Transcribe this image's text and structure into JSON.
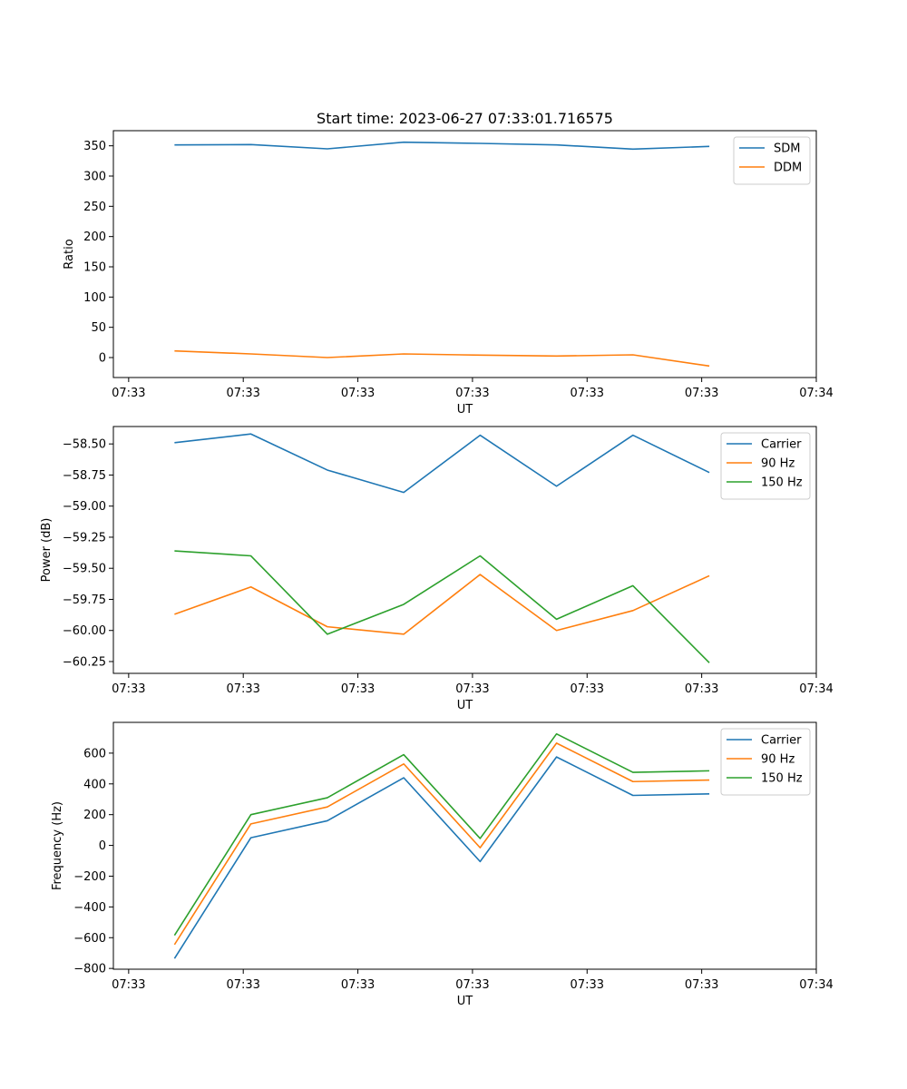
{
  "figure": {
    "title": "Start time: 2023-06-27 07:33:01.716575"
  },
  "chart_data": [
    {
      "type": "line",
      "title": "Start time: 2023-06-27 07:33:01.716575",
      "xlabel": "UT",
      "ylabel": "Ratio",
      "x_tick_labels": [
        "07:33",
        "07:33",
        "07:33",
        "07:33",
        "07:33",
        "07:33",
        "07:34"
      ],
      "y_ticks": [
        0,
        50,
        100,
        150,
        200,
        250,
        300,
        350
      ],
      "ylim": [
        -33,
        375
      ],
      "x": [
        1,
        2,
        3,
        4,
        5,
        6,
        7,
        8
      ],
      "xlim": [
        0.2,
        9.4
      ],
      "x_ticks": [
        0.4,
        1.9,
        3.4,
        4.9,
        6.4,
        7.9,
        9.4
      ],
      "legend": "top-right",
      "grid": false,
      "series": [
        {
          "name": "SDM",
          "color": "#1f77b4",
          "values": [
            351.5,
            352,
            345,
            356,
            354,
            351.5,
            344.5,
            349
          ]
        },
        {
          "name": "DDM",
          "color": "#ff7f0e",
          "values": [
            11,
            6,
            0,
            6,
            4,
            2.5,
            4.5,
            -14
          ]
        }
      ]
    },
    {
      "type": "line",
      "xlabel": "UT",
      "ylabel": "Power (dB)",
      "x_tick_labels": [
        "07:33",
        "07:33",
        "07:33",
        "07:33",
        "07:33",
        "07:33",
        "07:34"
      ],
      "y_ticks": [
        -58.5,
        -58.75,
        -59.0,
        -59.25,
        -59.5,
        -59.75,
        -60.0,
        -60.25
      ],
      "y_tick_labels": [
        "−58.50",
        "−58.75",
        "−59.00",
        "−59.25",
        "−59.50",
        "−59.75",
        "−60.00",
        "−60.25"
      ],
      "ylim": [
        -60.345,
        -58.36
      ],
      "x": [
        1,
        2,
        3,
        4,
        5,
        6,
        7,
        8
      ],
      "xlim": [
        0.2,
        9.4
      ],
      "x_ticks": [
        0.4,
        1.9,
        3.4,
        4.9,
        6.4,
        7.9,
        9.4
      ],
      "legend": "top-right",
      "grid": false,
      "series": [
        {
          "name": "Carrier",
          "color": "#1f77b4",
          "values": [
            -58.49,
            -58.42,
            -58.71,
            -58.89,
            -58.43,
            -58.84,
            -58.43,
            -58.73
          ]
        },
        {
          "name": "90 Hz",
          "color": "#ff7f0e",
          "values": [
            -59.87,
            -59.65,
            -59.97,
            -60.03,
            -59.55,
            -60.0,
            -59.84,
            -59.56
          ]
        },
        {
          "name": "150 Hz",
          "color": "#2ca02c",
          "values": [
            -59.36,
            -59.4,
            -60.03,
            -59.79,
            -59.4,
            -59.91,
            -59.64,
            -60.26
          ]
        }
      ]
    },
    {
      "type": "line",
      "xlabel": "UT",
      "ylabel": "Frequency (Hz)",
      "x_tick_labels": [
        "07:33",
        "07:33",
        "07:33",
        "07:33",
        "07:33",
        "07:33",
        "07:34"
      ],
      "y_ticks": [
        -800,
        -600,
        -400,
        -200,
        0,
        200,
        400,
        600
      ],
      "y_tick_labels": [
        "−800",
        "−600",
        "−400",
        "−200",
        "0",
        "200",
        "400",
        "600"
      ],
      "ylim": [
        -805,
        800
      ],
      "x": [
        1,
        2,
        3,
        4,
        5,
        6,
        7,
        8
      ],
      "xlim": [
        0.2,
        9.4
      ],
      "x_ticks": [
        0.4,
        1.9,
        3.4,
        4.9,
        6.4,
        7.9,
        9.4
      ],
      "legend": "top-right",
      "grid": false,
      "series": [
        {
          "name": "Carrier",
          "color": "#1f77b4",
          "values": [
            -735,
            50,
            160,
            440,
            -105,
            575,
            325,
            335
          ]
        },
        {
          "name": "90 Hz",
          "color": "#ff7f0e",
          "values": [
            -645,
            140,
            250,
            530,
            -15,
            665,
            415,
            425
          ]
        },
        {
          "name": "150 Hz",
          "color": "#2ca02c",
          "values": [
            -585,
            200,
            310,
            590,
            45,
            725,
            475,
            485
          ]
        }
      ]
    }
  ]
}
